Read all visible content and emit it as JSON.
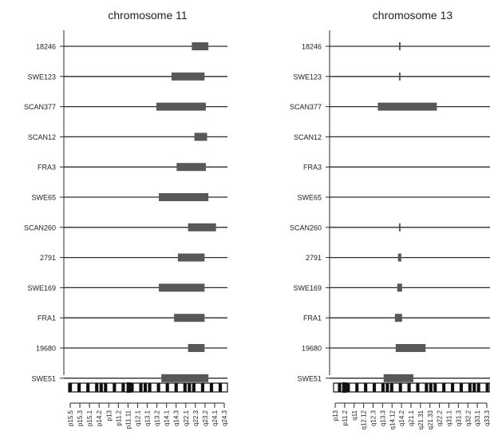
{
  "chart_data": [
    {
      "type": "bar",
      "title": "chromosome 11",
      "samples": [
        "18246",
        "SWE123",
        "SCAN377",
        "SCAN12",
        "FRA3",
        "SWE65",
        "SCAN260",
        "2791",
        "SWE169",
        "FRA1",
        "19680",
        "SWE51"
      ],
      "segments": [
        {
          "sample": "18246",
          "start": 0.776,
          "end": 0.88
        },
        {
          "sample": "SWE123",
          "start": 0.648,
          "end": 0.856
        },
        {
          "sample": "SCAN377",
          "start": 0.552,
          "end": 0.864
        },
        {
          "sample": "SCAN12",
          "start": 0.792,
          "end": 0.872
        },
        {
          "sample": "FRA3",
          "start": 0.68,
          "end": 0.864
        },
        {
          "sample": "SWE65",
          "start": 0.568,
          "end": 0.88
        },
        {
          "sample": "SCAN260",
          "start": 0.752,
          "end": 0.928
        },
        {
          "sample": "2791",
          "start": 0.688,
          "end": 0.856
        },
        {
          "sample": "SWE169",
          "start": 0.568,
          "end": 0.856
        },
        {
          "sample": "FRA1",
          "start": 0.664,
          "end": 0.856
        },
        {
          "sample": "19680",
          "start": 0.752,
          "end": 0.856
        },
        {
          "sample": "SWE51",
          "start": 0.584,
          "end": 0.88
        }
      ],
      "bands": [
        "p15.5",
        "p15.3",
        "p15.1",
        "p14.2",
        "p13",
        "p11.2",
        "p11.11",
        "q12.1",
        "q13.1",
        "q13.2",
        "q14.1",
        "q14.3",
        "q22.1",
        "q22.3",
        "q23.2",
        "q24.1",
        "q24.3"
      ]
    },
    {
      "type": "bar",
      "title": "chromosome 13",
      "samples": [
        "18246",
        "SWE123",
        "SCAN377",
        "SCAN12",
        "FRA3",
        "SWE65",
        "SCAN260",
        "2791",
        "SWE169",
        "FRA1",
        "19680",
        "SWE51"
      ],
      "segments": [
        {
          "sample": "18246",
          "start": 0.418,
          "end": 0.428
        },
        {
          "sample": "SWE123",
          "start": 0.418,
          "end": 0.428
        },
        {
          "sample": "SCAN377",
          "start": 0.283,
          "end": 0.66
        },
        {
          "sample": "SCAN260",
          "start": 0.418,
          "end": 0.428
        },
        {
          "sample": "2791",
          "start": 0.412,
          "end": 0.433
        },
        {
          "sample": "SWE169",
          "start": 0.407,
          "end": 0.438
        },
        {
          "sample": "FRA1",
          "start": 0.392,
          "end": 0.438
        },
        {
          "sample": "19680",
          "start": 0.397,
          "end": 0.588
        },
        {
          "sample": "SWE51",
          "start": 0.32,
          "end": 0.51
        }
      ],
      "bands": [
        "p13",
        "p11.2",
        "q11",
        "q12.12",
        "q12.3",
        "q13.3",
        "q14.12",
        "q14.2",
        "q21.1",
        "q21.31",
        "q21.33",
        "q22.2",
        "q31.1",
        "q31.3",
        "q32.2",
        "q33.1",
        "q33.3"
      ]
    }
  ],
  "colors": {
    "axis": "#2a2a2a",
    "segment": "#585858",
    "ideogram_dark": "#111111",
    "ideogram_light": "#ffffff"
  }
}
